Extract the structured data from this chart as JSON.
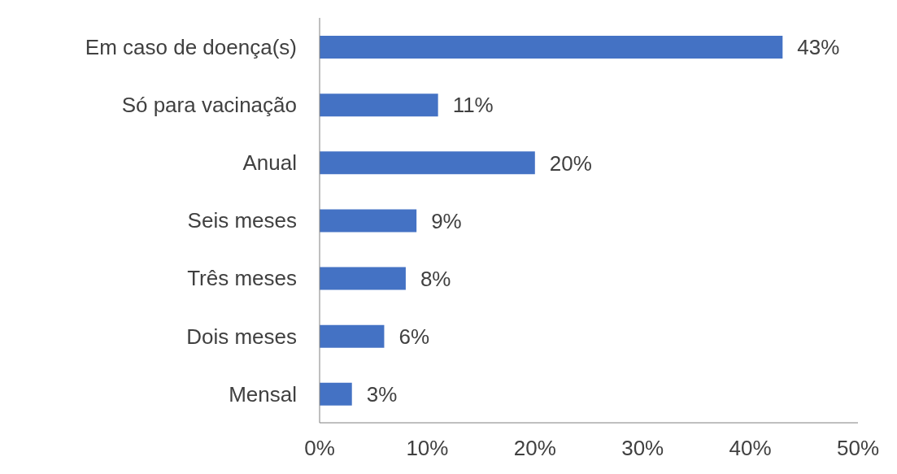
{
  "chart_data": {
    "type": "bar",
    "orientation": "horizontal",
    "categories": [
      "Em caso de doença(s)",
      "Só para vacinação",
      "Anual",
      "Seis meses ",
      "Três meses",
      "Dois meses",
      "Mensal"
    ],
    "values": [
      43,
      11,
      20,
      9,
      8,
      6,
      3
    ],
    "value_labels": [
      "43%",
      "11%",
      "20%",
      "9%",
      "8%",
      "6%",
      "3%"
    ],
    "color": "#4472c4",
    "xlim": [
      0,
      50
    ],
    "xticks": [
      {
        "value": 0,
        "label": "0%"
      },
      {
        "value": 10,
        "label": "10%"
      },
      {
        "value": 20,
        "label": "20%"
      },
      {
        "value": 30,
        "label": "30%"
      },
      {
        "value": 40,
        "label": "40%"
      },
      {
        "value": 50,
        "label": "50%"
      }
    ]
  }
}
